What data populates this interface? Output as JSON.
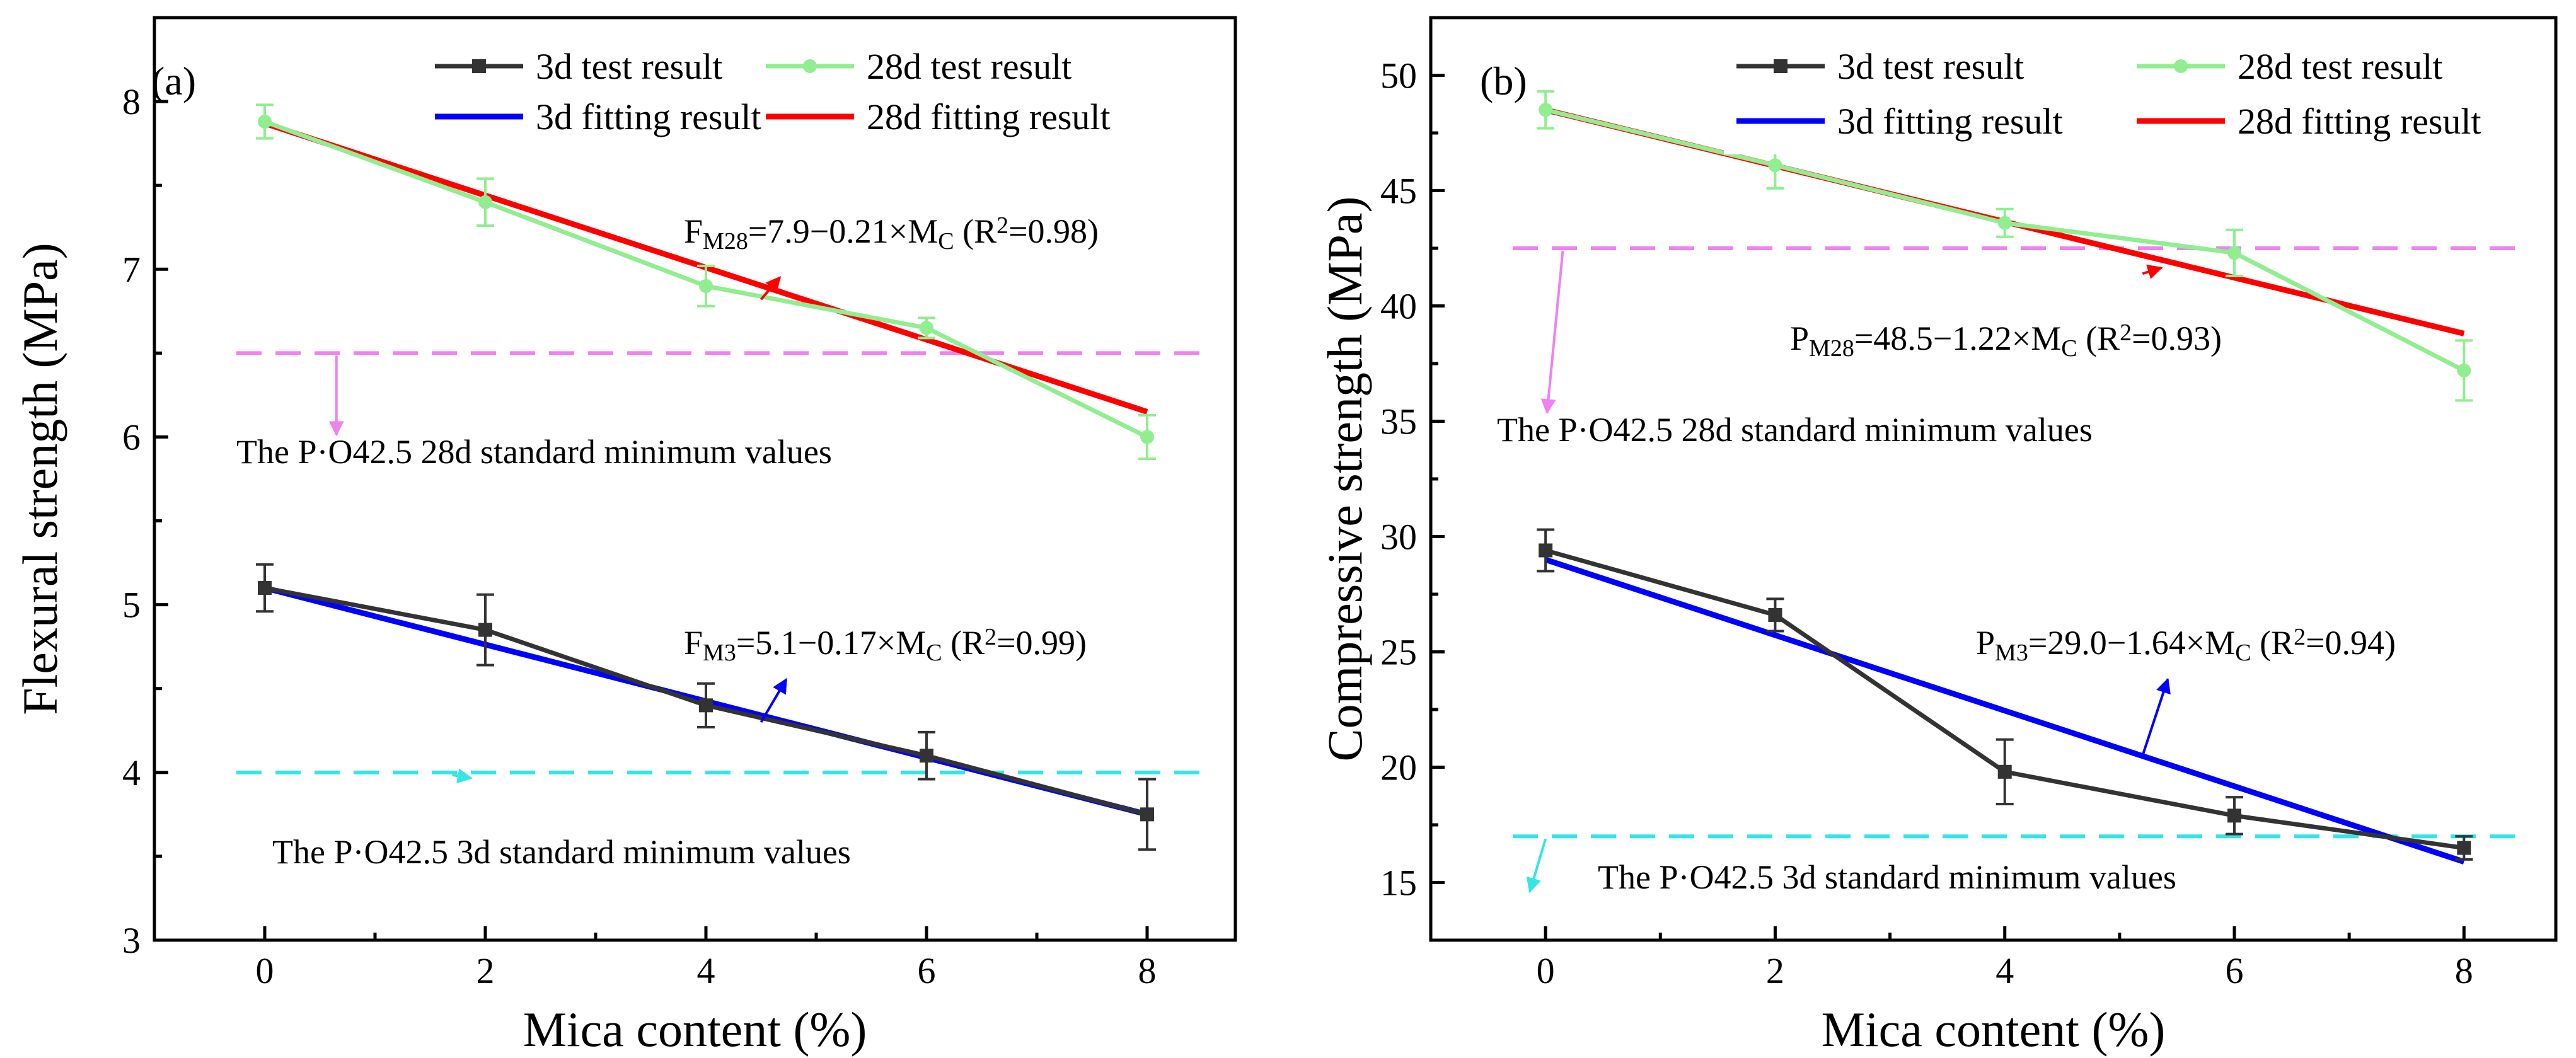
{
  "colors": {
    "test_3d": "#333333",
    "test_28d": "#90EE90",
    "red_fit": "#FF0000",
    "blue_fit": "#0000FF",
    "magenta_ref": "#EE82EE",
    "cyan_ref": "#33E6E6",
    "arrow_red": "#FF0000",
    "arrow_blue": "#0000FF",
    "arrow_magenta": "#EE82EE",
    "arrow_cyan": "#33E6E6"
  },
  "chart_data": [
    {
      "type": "line",
      "panel_label": "(a)",
      "xlabel": "Mica content (%)",
      "ylabel": "Flexural strength (MPa)",
      "xlim": [
        -1,
        8.8
      ],
      "ylim": [
        3,
        8.5
      ],
      "x_ticks": [
        0,
        2,
        4,
        6,
        8
      ],
      "y_ticks": [
        3,
        4,
        5,
        6,
        7,
        8
      ],
      "legend": [
        {
          "label": "3d test result",
          "series": "test_3d"
        },
        {
          "label": "28d test result",
          "series": "test_28d"
        },
        {
          "label": "3d fitting result",
          "series": "fit_3d"
        },
        {
          "label": "28d fitting result",
          "series": "fit_28d"
        }
      ],
      "series": [
        {
          "name": "28d fitting result",
          "id": "fit_28d",
          "color_key": "red_fit",
          "x": [
            0,
            8
          ],
          "values": [
            7.87,
            6.15
          ]
        },
        {
          "name": "3d fitting result",
          "id": "fit_3d",
          "color_key": "blue_fit",
          "x": [
            0,
            8
          ],
          "values": [
            5.1,
            3.75
          ]
        },
        {
          "name": "28d test result",
          "id": "test_28d",
          "color_key": "test_28d",
          "marker": "circle",
          "x": [
            0,
            2,
            4,
            6,
            8
          ],
          "values": [
            7.88,
            7.4,
            6.9,
            6.65,
            6.0
          ],
          "errors": [
            0.1,
            0.14,
            0.12,
            0.06,
            0.13
          ]
        },
        {
          "name": "3d test result",
          "id": "test_3d",
          "color_key": "test_3d",
          "marker": "square",
          "x": [
            0,
            2,
            4,
            6,
            8
          ],
          "values": [
            5.1,
            4.85,
            4.4,
            4.1,
            3.75
          ],
          "errors": [
            0.14,
            0.21,
            0.13,
            0.14,
            0.21
          ]
        }
      ],
      "reference_lines": [
        {
          "y": 6.5,
          "color_key": "magenta_ref",
          "label": "The P·O42.5 28d standard minimum values",
          "arrow_x": 0.65
        },
        {
          "y": 4.0,
          "color_key": "cyan_ref",
          "label": "The P·O42.5 3d standard minimum values",
          "arrow_x": 1.7
        }
      ],
      "equations": [
        {
          "sym": "F",
          "sub": "M28",
          "rest": "=7.9−0.21×M",
          "sub2": "C",
          "r2": " (R",
          "sup": "2",
          "end": "=0.98)",
          "color_key": "arrow_red",
          "point_x": 4.5,
          "point_y": 6.82
        },
        {
          "sym": "F",
          "sub": "M3",
          "rest": "=5.1−0.17×M",
          "sub2": "C",
          "r2": " (R",
          "sup": "2",
          "end": "=0.99)",
          "color_key": "arrow_blue",
          "point_x": 4.5,
          "point_y": 4.3
        }
      ]
    },
    {
      "type": "line",
      "panel_label": "(b)",
      "xlabel": "Mica content (%)",
      "ylabel": "Compressive strength (MPa)",
      "xlim": [
        -1,
        8.8
      ],
      "ylim": [
        12.5,
        52.5
      ],
      "x_ticks": [
        0,
        2,
        4,
        6,
        8
      ],
      "y_ticks": [
        15,
        20,
        25,
        30,
        35,
        40,
        45,
        50
      ],
      "legend": [
        {
          "label": "3d test result",
          "series": "test_3d"
        },
        {
          "label": "28d test result",
          "series": "test_28d"
        },
        {
          "label": "3d fitting result",
          "series": "fit_3d"
        },
        {
          "label": "28d fitting result",
          "series": "fit_28d"
        }
      ],
      "series": [
        {
          "name": "28d fitting result",
          "id": "fit_28d",
          "color_key": "red_fit",
          "x": [
            0,
            8
          ],
          "values": [
            48.5,
            38.8
          ]
        },
        {
          "name": "3d fitting result",
          "id": "fit_3d",
          "color_key": "blue_fit",
          "x": [
            0,
            8
          ],
          "values": [
            29.0,
            15.9
          ]
        },
        {
          "name": "28d test result",
          "id": "test_28d",
          "color_key": "test_28d",
          "marker": "circle",
          "x": [
            0,
            2,
            4,
            6,
            8
          ],
          "values": [
            48.5,
            46.1,
            43.6,
            42.3,
            37.2
          ],
          "errors": [
            0.8,
            1.0,
            0.6,
            1.0,
            1.3
          ]
        },
        {
          "name": "3d test result",
          "id": "test_3d",
          "color_key": "test_3d",
          "marker": "square",
          "x": [
            0,
            2,
            4,
            6,
            8
          ],
          "values": [
            29.4,
            26.6,
            19.8,
            17.9,
            16.5
          ],
          "errors": [
            0.9,
            0.7,
            1.4,
            0.8,
            0.5
          ]
        }
      ],
      "reference_lines": [
        {
          "y": 42.5,
          "color_key": "magenta_ref",
          "label": "The P·O42.5 28d standard minimum values",
          "arrow_x": 0.15
        },
        {
          "y": 17.0,
          "color_key": "cyan_ref",
          "label": "The P·O42.5 3d standard minimum values",
          "arrow_x": 0.0
        }
      ],
      "equations": [
        {
          "sym": "P",
          "sub": "M28",
          "rest": "=48.5−1.22×M",
          "sub2": "C",
          "r2": " (R",
          "sup": "2",
          "end": "=0.93)",
          "color_key": "arrow_red",
          "point_x": 5.2,
          "point_y": 41.4
        },
        {
          "sym": "P",
          "sub": "M3",
          "rest": "=29.0−1.64×M",
          "sub2": "C",
          "r2": " (R",
          "sup": "2",
          "end": "=0.94)",
          "color_key": "arrow_blue",
          "point_x": 5.2,
          "point_y": 20.5
        }
      ]
    }
  ]
}
